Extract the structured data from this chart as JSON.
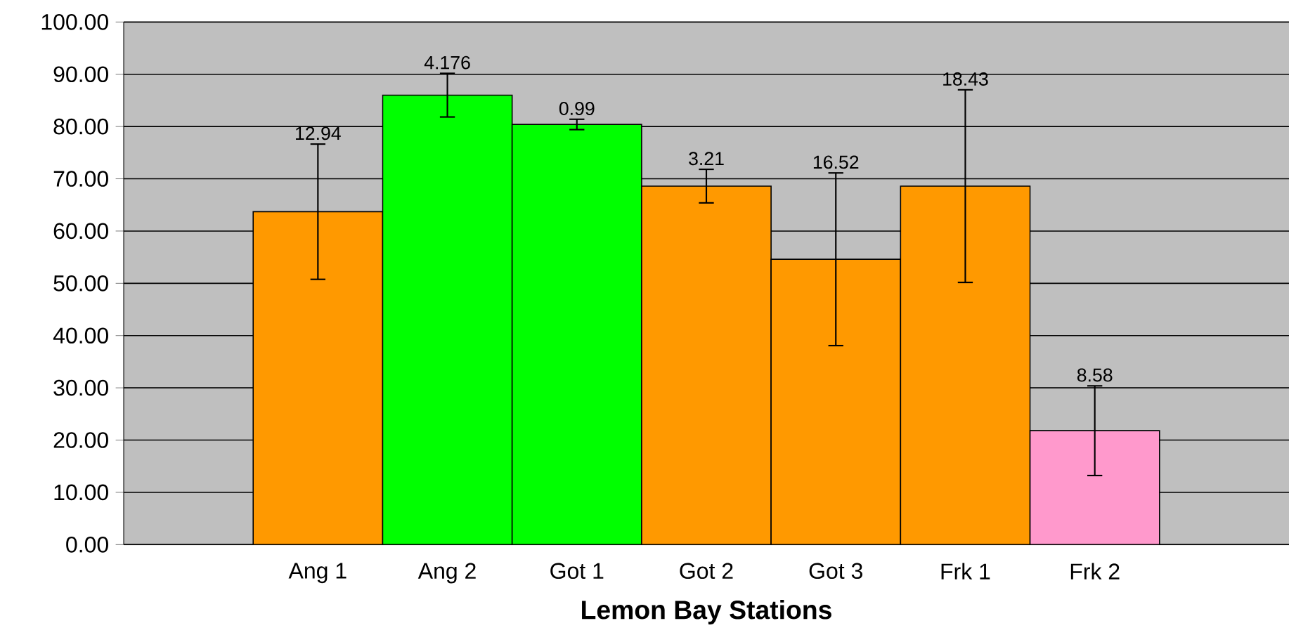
{
  "chart_data": {
    "type": "bar",
    "xlabel": "**Lemon Bay Stations**",
    "categories": [
      null,
      "Ang 1",
      "Ang 2",
      "Got 1",
      "Got 2",
      "Got 3",
      "Frk 1",
      "Frk 2",
      null
    ],
    "values": [
      null,
      63.7,
      86.0,
      80.4,
      68.6,
      54.6,
      68.6,
      21.8,
      null
    ],
    "errors": [
      null,
      12.94,
      4.176,
      0.99,
      3.21,
      16.52,
      18.43,
      8.58,
      null
    ],
    "colors": [
      "#ff9900",
      "#ff9900",
      "#00ff00",
      "#00ff00",
      "#ff9900",
      "#ff9900",
      "#ff9900",
      "#ff99cc",
      "#ff9900"
    ],
    "annotations": [
      {
        "text": "12.94",
        "x": "Ang 1",
        "y": 76.64
      },
      {
        "text": "4.176",
        "x": "Ang 2",
        "y": 90.18
      },
      {
        "text": "0.99",
        "x": "Got 1",
        "y": 81.39
      },
      {
        "text": "3.21",
        "x": "Got 2",
        "y": 71.81
      },
      {
        "text": "16.52",
        "x": "Got 3",
        "y": 71.12
      },
      {
        "text": "18.43",
        "x": "Frk 1",
        "y": 87.03
      },
      {
        "text": "8.58",
        "x": "Frk 2",
        "y": 30.38
      }
    ],
    "ylim": [
      0,
      100
    ],
    "yticks": [
      {
        "value": 0,
        "label": "0.00"
      },
      {
        "value": 10,
        "label": "10.00"
      },
      {
        "value": 20,
        "label": "20.00"
      },
      {
        "value": 30,
        "label": "30.00"
      },
      {
        "value": 40,
        "label": "40.00"
      },
      {
        "value": 50,
        "label": "50.00"
      },
      {
        "value": 60,
        "label": "60.00"
      },
      {
        "value": 70,
        "label": "70.00"
      },
      {
        "value": 80,
        "label": "80.00"
      },
      {
        "value": 90,
        "label": "90.00"
      },
      {
        "value": 100,
        "label": "100.00"
      }
    ],
    "grid": "y"
  }
}
